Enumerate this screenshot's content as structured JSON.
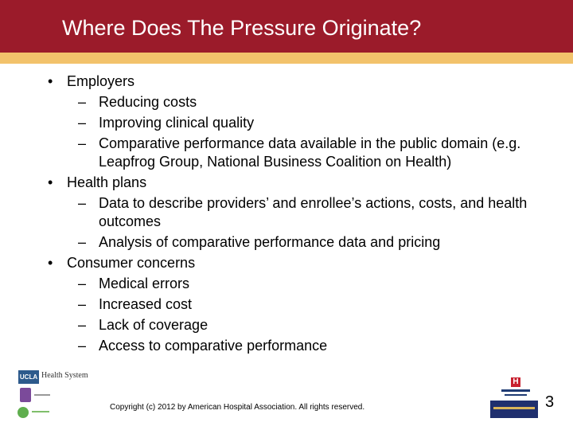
{
  "slide": {
    "title": "Where Does The Pressure Originate?",
    "page_number": "3",
    "footer": "Copyright (c) 2012 by  American Hospital Association. All rights reserved."
  },
  "bullets": [
    {
      "label": "Employers",
      "subitems": [
        "Reducing costs",
        "Improving clinical quality",
        "Comparative performance data available in the public domain (e.g. Leapfrog Group, National Business Coalition on Health)"
      ]
    },
    {
      "label": "Health plans",
      "subitems": [
        "Data to describe providers’ and enrollee’s actions, costs, and health outcomes",
        "Analysis of comparative performance data and pricing"
      ]
    },
    {
      "label": "Consumer concerns",
      "subitems": [
        "Medical errors",
        "Increased cost",
        "Lack of coverage",
        "Access to comparative performance"
      ]
    }
  ],
  "markers": {
    "bullet": "•",
    "dash": "–"
  },
  "logos": {
    "ucla_badge": "UCLA",
    "ucla_text": "Health System",
    "aha_mark": "H"
  },
  "colors": {
    "title_bar": "#9b1b2a",
    "accent_band": "#f2c26b",
    "title_text": "#ffffff"
  }
}
